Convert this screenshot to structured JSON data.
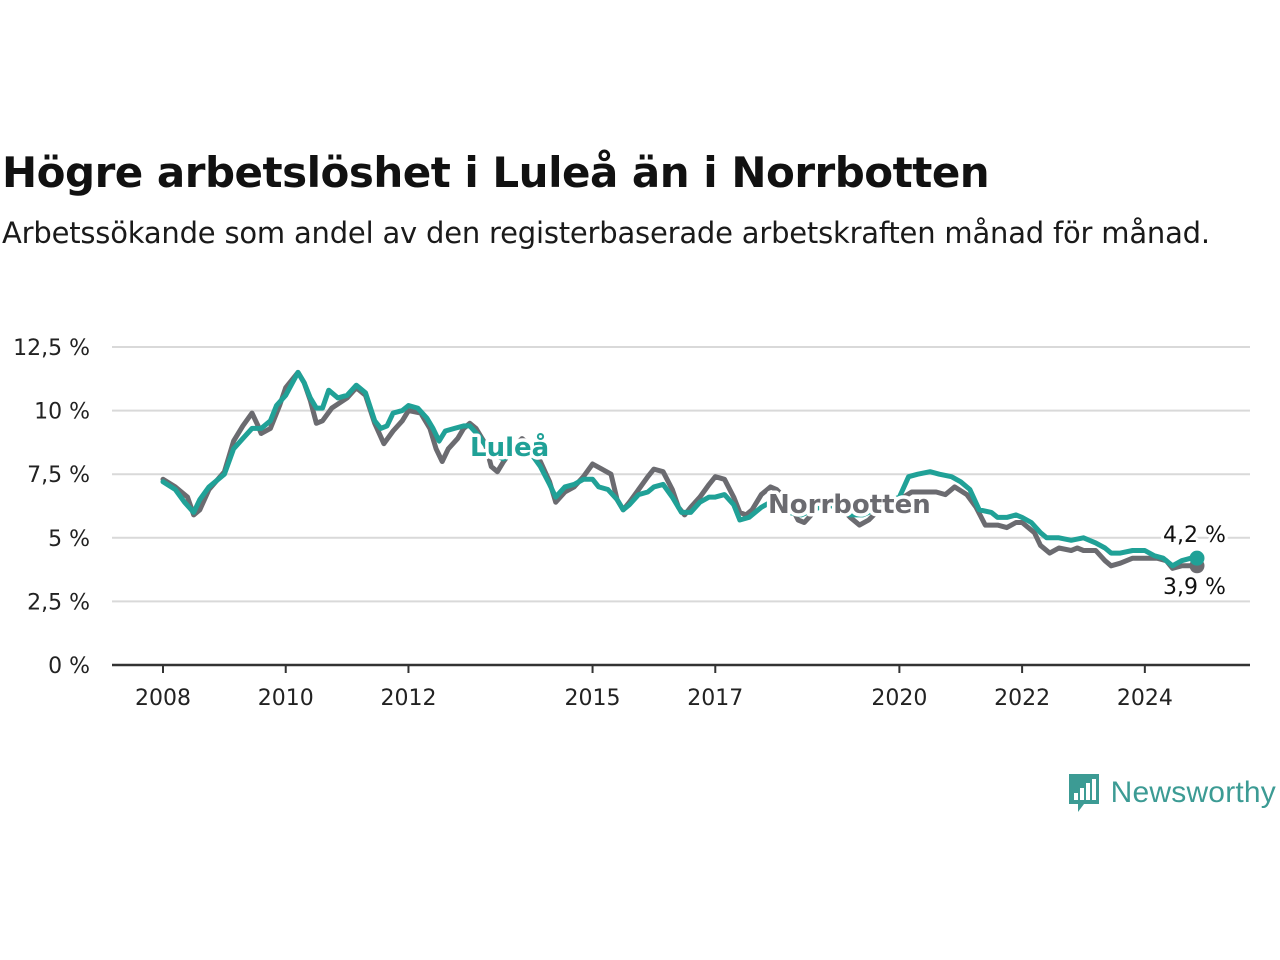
{
  "header": {
    "title": "Högre arbetslöshet i Luleå än i Norrbotten",
    "subtitle": "Arbetssökande som andel av den registerbaserade arbetskraften månad för månad."
  },
  "brand": {
    "name": "Newsworthy",
    "icon": "newsworthy-logo-icon",
    "color": "#3c9b94"
  },
  "chart_data": {
    "type": "line",
    "title": "Högre arbetslöshet i Luleå än i Norrbotten",
    "subtitle": "Arbetssökande som andel av den registerbaserade arbetskraften månad för månad.",
    "xlabel": "",
    "ylabel": "",
    "xlim": [
      2008.0,
      2024.85
    ],
    "ylim": [
      0,
      12.5
    ],
    "y_ticks": [
      0,
      2.5,
      5,
      7.5,
      10,
      12.5
    ],
    "y_tick_labels": [
      "0 %",
      "2,5 %",
      "5 %",
      "7,5 %",
      "10 %",
      "12,5 %"
    ],
    "x_ticks": [
      2008,
      2010,
      2012,
      2015,
      2017,
      2020,
      2022,
      2024
    ],
    "x_tick_labels": [
      "2008",
      "2010",
      "2012",
      "2015",
      "2017",
      "2020",
      "2022",
      "2024"
    ],
    "grid": true,
    "legend": "inline labels on lines",
    "series": [
      {
        "name": "Norrbotten",
        "color": "#6b6b70",
        "end_label": "3,9 %",
        "points": [
          [
            2008.0,
            7.3
          ],
          [
            2008.2,
            7.0
          ],
          [
            2008.4,
            6.6
          ],
          [
            2008.5,
            5.9
          ],
          [
            2008.6,
            6.1
          ],
          [
            2008.75,
            6.9
          ],
          [
            2009.0,
            7.6
          ],
          [
            2009.15,
            8.8
          ],
          [
            2009.3,
            9.4
          ],
          [
            2009.45,
            9.9
          ],
          [
            2009.55,
            9.4
          ],
          [
            2009.6,
            9.1
          ],
          [
            2009.75,
            9.3
          ],
          [
            2009.9,
            10.2
          ],
          [
            2010.0,
            10.9
          ],
          [
            2010.2,
            11.5
          ],
          [
            2010.3,
            11.1
          ],
          [
            2010.4,
            10.4
          ],
          [
            2010.5,
            9.5
          ],
          [
            2010.6,
            9.6
          ],
          [
            2010.75,
            10.1
          ],
          [
            2011.0,
            10.5
          ],
          [
            2011.15,
            10.9
          ],
          [
            2011.3,
            10.6
          ],
          [
            2011.45,
            9.5
          ],
          [
            2011.6,
            8.7
          ],
          [
            2011.75,
            9.2
          ],
          [
            2011.9,
            9.6
          ],
          [
            2012.0,
            10.0
          ],
          [
            2012.2,
            9.9
          ],
          [
            2012.35,
            9.3
          ],
          [
            2012.45,
            8.5
          ],
          [
            2012.55,
            8.0
          ],
          [
            2012.65,
            8.5
          ],
          [
            2012.8,
            8.9
          ],
          [
            2012.9,
            9.3
          ],
          [
            2013.0,
            9.5
          ],
          [
            2013.1,
            9.3
          ],
          [
            2013.25,
            8.7
          ],
          [
            2013.35,
            7.8
          ],
          [
            2013.45,
            7.6
          ],
          [
            2013.55,
            8.0
          ],
          [
            2013.7,
            8.5
          ],
          [
            2013.85,
            8.9
          ],
          [
            2014.0,
            8.6
          ],
          [
            2014.15,
            8.0
          ],
          [
            2014.3,
            7.2
          ],
          [
            2014.4,
            6.4
          ],
          [
            2014.55,
            6.8
          ],
          [
            2014.7,
            7.0
          ],
          [
            2014.85,
            7.4
          ],
          [
            2015.0,
            7.9
          ],
          [
            2015.15,
            7.7
          ],
          [
            2015.3,
            7.5
          ],
          [
            2015.4,
            6.5
          ],
          [
            2015.5,
            6.1
          ],
          [
            2015.6,
            6.4
          ],
          [
            2015.75,
            6.9
          ],
          [
            2015.9,
            7.4
          ],
          [
            2016.0,
            7.7
          ],
          [
            2016.15,
            7.6
          ],
          [
            2016.3,
            6.9
          ],
          [
            2016.4,
            6.2
          ],
          [
            2016.5,
            5.9
          ],
          [
            2016.6,
            6.2
          ],
          [
            2016.75,
            6.6
          ],
          [
            2016.9,
            7.1
          ],
          [
            2017.0,
            7.4
          ],
          [
            2017.15,
            7.3
          ],
          [
            2017.3,
            6.6
          ],
          [
            2017.4,
            6.0
          ],
          [
            2017.5,
            5.9
          ],
          [
            2017.6,
            6.1
          ],
          [
            2017.75,
            6.7
          ],
          [
            2017.9,
            7.0
          ],
          [
            2018.0,
            6.9
          ],
          [
            2018.2,
            6.4
          ],
          [
            2018.35,
            5.7
          ],
          [
            2018.45,
            5.6
          ],
          [
            2018.6,
            6.0
          ],
          [
            2018.75,
            6.5
          ],
          [
            2019.0,
            6.3
          ],
          [
            2019.2,
            5.8
          ],
          [
            2019.35,
            5.5
          ],
          [
            2019.5,
            5.7
          ],
          [
            2019.75,
            6.3
          ],
          [
            2020.0,
            6.5
          ],
          [
            2020.2,
            6.8
          ],
          [
            2020.4,
            6.8
          ],
          [
            2020.6,
            6.8
          ],
          [
            2020.75,
            6.7
          ],
          [
            2020.9,
            7.0
          ],
          [
            2021.1,
            6.7
          ],
          [
            2021.25,
            6.2
          ],
          [
            2021.4,
            5.5
          ],
          [
            2021.6,
            5.5
          ],
          [
            2021.75,
            5.4
          ],
          [
            2021.9,
            5.6
          ],
          [
            2022.0,
            5.6
          ],
          [
            2022.2,
            5.2
          ],
          [
            2022.3,
            4.7
          ],
          [
            2022.45,
            4.4
          ],
          [
            2022.6,
            4.6
          ],
          [
            2022.8,
            4.5
          ],
          [
            2022.9,
            4.6
          ],
          [
            2023.0,
            4.5
          ],
          [
            2023.2,
            4.5
          ],
          [
            2023.35,
            4.1
          ],
          [
            2023.45,
            3.9
          ],
          [
            2023.6,
            4.0
          ],
          [
            2023.8,
            4.2
          ],
          [
            2024.0,
            4.2
          ],
          [
            2024.2,
            4.2
          ],
          [
            2024.35,
            4.1
          ],
          [
            2024.45,
            3.8
          ],
          [
            2024.6,
            3.9
          ],
          [
            2024.75,
            3.9
          ],
          [
            2024.85,
            3.9
          ]
        ]
      },
      {
        "name": "Luleå",
        "color": "#20a197",
        "end_label": "4,2 %",
        "points": [
          [
            2008.0,
            7.2
          ],
          [
            2008.2,
            6.9
          ],
          [
            2008.35,
            6.4
          ],
          [
            2008.5,
            6.0
          ],
          [
            2008.6,
            6.5
          ],
          [
            2008.75,
            7.0
          ],
          [
            2009.0,
            7.5
          ],
          [
            2009.15,
            8.5
          ],
          [
            2009.3,
            8.9
          ],
          [
            2009.45,
            9.3
          ],
          [
            2009.6,
            9.3
          ],
          [
            2009.75,
            9.6
          ],
          [
            2009.85,
            10.2
          ],
          [
            2010.0,
            10.6
          ],
          [
            2010.2,
            11.5
          ],
          [
            2010.3,
            11.1
          ],
          [
            2010.4,
            10.5
          ],
          [
            2010.5,
            10.1
          ],
          [
            2010.6,
            10.1
          ],
          [
            2010.7,
            10.8
          ],
          [
            2010.85,
            10.5
          ],
          [
            2011.0,
            10.6
          ],
          [
            2011.15,
            11.0
          ],
          [
            2011.3,
            10.7
          ],
          [
            2011.45,
            9.6
          ],
          [
            2011.55,
            9.3
          ],
          [
            2011.65,
            9.4
          ],
          [
            2011.75,
            9.9
          ],
          [
            2011.9,
            10.0
          ],
          [
            2012.0,
            10.2
          ],
          [
            2012.15,
            10.1
          ],
          [
            2012.3,
            9.7
          ],
          [
            2012.4,
            9.3
          ],
          [
            2012.5,
            8.8
          ],
          [
            2012.6,
            9.2
          ],
          [
            2012.75,
            9.3
          ],
          [
            2012.9,
            9.4
          ],
          [
            2013.0,
            9.4
          ],
          [
            2013.15,
            9.0
          ],
          [
            2013.35,
            8.3
          ],
          [
            2013.55,
            8.1
          ],
          [
            2013.8,
            8.4
          ],
          [
            2014.0,
            8.3
          ],
          [
            2014.15,
            7.8
          ],
          [
            2014.3,
            7.1
          ],
          [
            2014.4,
            6.6
          ],
          [
            2014.55,
            7.0
          ],
          [
            2014.7,
            7.1
          ],
          [
            2014.85,
            7.3
          ],
          [
            2015.0,
            7.3
          ],
          [
            2015.1,
            7.0
          ],
          [
            2015.25,
            6.9
          ],
          [
            2015.4,
            6.5
          ],
          [
            2015.5,
            6.1
          ],
          [
            2015.6,
            6.3
          ],
          [
            2015.75,
            6.7
          ],
          [
            2015.9,
            6.8
          ],
          [
            2016.0,
            7.0
          ],
          [
            2016.15,
            7.1
          ],
          [
            2016.3,
            6.6
          ],
          [
            2016.45,
            6.0
          ],
          [
            2016.6,
            6.0
          ],
          [
            2016.75,
            6.4
          ],
          [
            2016.9,
            6.6
          ],
          [
            2017.0,
            6.6
          ],
          [
            2017.15,
            6.7
          ],
          [
            2017.3,
            6.3
          ],
          [
            2017.4,
            5.7
          ],
          [
            2017.55,
            5.8
          ],
          [
            2017.75,
            6.2
          ],
          [
            2017.9,
            6.4
          ],
          [
            2018.0,
            6.3
          ],
          [
            2018.2,
            6.0
          ],
          [
            2018.4,
            5.9
          ],
          [
            2018.6,
            6.1
          ],
          [
            2018.8,
            6.3
          ],
          [
            2019.0,
            6.2
          ],
          [
            2019.2,
            5.9
          ],
          [
            2019.4,
            5.9
          ],
          [
            2019.6,
            6.1
          ],
          [
            2019.8,
            6.4
          ],
          [
            2020.0,
            6.6
          ],
          [
            2020.15,
            7.4
          ],
          [
            2020.3,
            7.5
          ],
          [
            2020.5,
            7.6
          ],
          [
            2020.65,
            7.5
          ],
          [
            2020.85,
            7.4
          ],
          [
            2021.0,
            7.2
          ],
          [
            2021.15,
            6.9
          ],
          [
            2021.3,
            6.1
          ],
          [
            2021.5,
            6.0
          ],
          [
            2021.6,
            5.8
          ],
          [
            2021.75,
            5.8
          ],
          [
            2021.9,
            5.9
          ],
          [
            2022.0,
            5.8
          ],
          [
            2022.15,
            5.6
          ],
          [
            2022.3,
            5.2
          ],
          [
            2022.4,
            5.0
          ],
          [
            2022.6,
            5.0
          ],
          [
            2022.8,
            4.9
          ],
          [
            2023.0,
            5.0
          ],
          [
            2023.2,
            4.8
          ],
          [
            2023.35,
            4.6
          ],
          [
            2023.45,
            4.4
          ],
          [
            2023.6,
            4.4
          ],
          [
            2023.8,
            4.5
          ],
          [
            2024.0,
            4.5
          ],
          [
            2024.15,
            4.3
          ],
          [
            2024.3,
            4.2
          ],
          [
            2024.45,
            3.9
          ],
          [
            2024.6,
            4.1
          ],
          [
            2024.75,
            4.2
          ],
          [
            2024.85,
            4.2
          ]
        ]
      }
    ]
  }
}
